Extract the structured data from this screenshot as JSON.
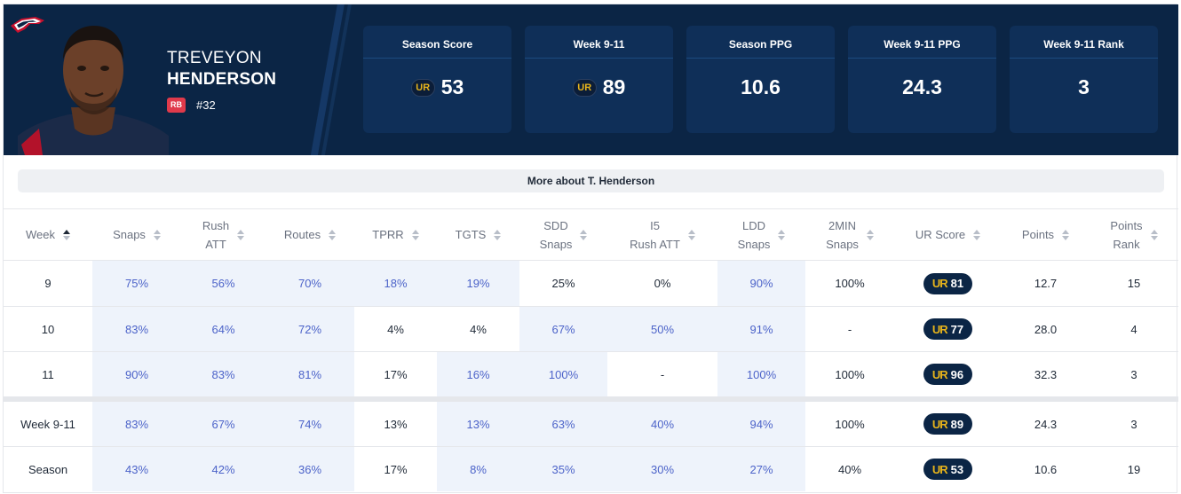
{
  "player": {
    "first_name": "TREVEYON",
    "last_name": "HENDERSON",
    "position": "RB",
    "number": "#32"
  },
  "team_logo": "patriots-logo",
  "stat_cards": [
    {
      "label": "Season Score",
      "value": "53",
      "ur_icon": true
    },
    {
      "label": "Week 9-11",
      "value": "89",
      "ur_icon": true
    },
    {
      "label": "Season PPG",
      "value": "10.6",
      "ur_icon": false
    },
    {
      "label": "Week 9-11 PPG",
      "value": "24.3",
      "ur_icon": false
    },
    {
      "label": "Week 9-11 Rank",
      "value": "3",
      "ur_icon": false
    }
  ],
  "ur_icon_text": "UR",
  "more_button": "More about T. Henderson",
  "table": {
    "headers": [
      {
        "line1": "Week",
        "line2": ""
      },
      {
        "line1": "Snaps",
        "line2": ""
      },
      {
        "line1": "Rush",
        "line2": "ATT"
      },
      {
        "line1": "Routes",
        "line2": ""
      },
      {
        "line1": "TPRR",
        "line2": ""
      },
      {
        "line1": "TGTS",
        "line2": ""
      },
      {
        "line1": "SDD",
        "line2": "Snaps"
      },
      {
        "line1": "I5",
        "line2": "Rush ATT"
      },
      {
        "line1": "LDD",
        "line2": "Snaps"
      },
      {
        "line1": "2MIN",
        "line2": "Snaps"
      },
      {
        "line1": "UR Score",
        "line2": ""
      },
      {
        "line1": "Points",
        "line2": ""
      },
      {
        "line1": "Points",
        "line2": "Rank"
      }
    ],
    "rows": [
      [
        "9",
        "75%",
        "56%",
        "70%",
        "18%",
        "19%",
        "25%",
        "0%",
        "90%",
        "100%",
        "81",
        "12.7",
        "15"
      ],
      [
        "10",
        "83%",
        "64%",
        "72%",
        "4%",
        "4%",
        "67%",
        "50%",
        "91%",
        "-",
        "77",
        "28.0",
        "4"
      ],
      [
        "11",
        "90%",
        "83%",
        "81%",
        "17%",
        "16%",
        "100%",
        "-",
        "100%",
        "100%",
        "96",
        "32.3",
        "3"
      ],
      [
        "Week 9-11",
        "83%",
        "67%",
        "74%",
        "13%",
        "13%",
        "63%",
        "40%",
        "94%",
        "100%",
        "89",
        "24.3",
        "3"
      ],
      [
        "Season",
        "43%",
        "42%",
        "36%",
        "17%",
        "8%",
        "35%",
        "30%",
        "27%",
        "40%",
        "53",
        "10.6",
        "19"
      ]
    ],
    "highlight": [
      [
        false,
        true,
        true,
        true,
        true,
        true,
        false,
        false,
        true,
        false,
        false,
        false,
        false
      ],
      [
        false,
        true,
        true,
        true,
        false,
        false,
        true,
        true,
        true,
        false,
        false,
        false,
        false
      ],
      [
        false,
        true,
        true,
        true,
        false,
        true,
        true,
        false,
        true,
        false,
        false,
        false,
        false
      ],
      [
        false,
        true,
        true,
        true,
        false,
        true,
        true,
        true,
        true,
        false,
        false,
        false,
        false
      ],
      [
        false,
        true,
        true,
        true,
        false,
        true,
        true,
        true,
        true,
        false,
        false,
        false,
        false
      ]
    ],
    "blue_text": [
      [
        false,
        true,
        true,
        true,
        true,
        true,
        false,
        false,
        true,
        false,
        false,
        false,
        false
      ],
      [
        false,
        true,
        true,
        true,
        false,
        false,
        true,
        true,
        true,
        false,
        false,
        false,
        false
      ],
      [
        false,
        true,
        true,
        true,
        false,
        true,
        true,
        false,
        true,
        false,
        false,
        false,
        false
      ],
      [
        false,
        true,
        true,
        true,
        false,
        true,
        true,
        true,
        true,
        false,
        false,
        false,
        false
      ],
      [
        false,
        true,
        true,
        true,
        false,
        true,
        true,
        true,
        true,
        false,
        false,
        false,
        false
      ]
    ]
  }
}
